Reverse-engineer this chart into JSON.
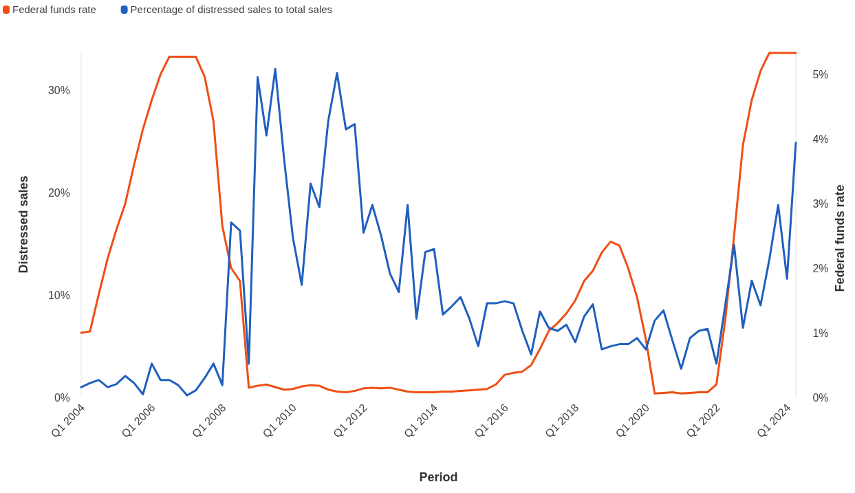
{
  "chart_data": {
    "type": "line",
    "xlabel": "Period",
    "ylabel": "Distressed sales",
    "y2label": "Federal funds rate",
    "categories": [
      "Q1 2004",
      null,
      null,
      null,
      null,
      null,
      null,
      null,
      "Q1 2006",
      null,
      null,
      null,
      null,
      null,
      null,
      null,
      "Q1 2008",
      null,
      null,
      null,
      null,
      null,
      null,
      null,
      "Q1 2010",
      null,
      null,
      null,
      null,
      null,
      null,
      null,
      "Q1 2012",
      null,
      null,
      null,
      null,
      null,
      null,
      null,
      "Q1 2014",
      null,
      null,
      null,
      null,
      null,
      null,
      null,
      "Q1 2016",
      null,
      null,
      null,
      null,
      null,
      null,
      null,
      "Q1 2018",
      null,
      null,
      null,
      null,
      null,
      null,
      null,
      "Q1 2020",
      null,
      null,
      null,
      null,
      null,
      null,
      null,
      "Q1 2022",
      null,
      null,
      null,
      null,
      null,
      null,
      null,
      "Q1 2024",
      null
    ],
    "series": [
      {
        "name": "Federal funds rate",
        "color": "#f04e14",
        "axis": "y2",
        "values": [
          1.0,
          1.02,
          1.6,
          2.15,
          2.6,
          3.0,
          3.6,
          4.15,
          4.6,
          5.0,
          5.27,
          5.27,
          5.27,
          5.27,
          4.96,
          4.27,
          2.65,
          2.0,
          1.8,
          0.15,
          0.18,
          0.2,
          0.16,
          0.12,
          0.13,
          0.17,
          0.19,
          0.18,
          0.12,
          0.09,
          0.08,
          0.1,
          0.14,
          0.15,
          0.14,
          0.15,
          0.12,
          0.09,
          0.08,
          0.08,
          0.08,
          0.09,
          0.09,
          0.1,
          0.11,
          0.12,
          0.13,
          0.2,
          0.35,
          0.38,
          0.4,
          0.5,
          0.75,
          1.03,
          1.15,
          1.3,
          1.5,
          1.8,
          1.96,
          2.24,
          2.41,
          2.35,
          2.0,
          1.55,
          0.9,
          0.06,
          0.07,
          0.08,
          0.06,
          0.07,
          0.08,
          0.08,
          0.2,
          1.2,
          2.5,
          3.9,
          4.6,
          5.05,
          5.33,
          5.33,
          5.33,
          5.33
        ]
      },
      {
        "name": "Percentage of distressed sales to total sales",
        "color": "#1f5fbf",
        "values": [
          1.0,
          1.4,
          1.7,
          1.0,
          1.3,
          2.1,
          1.4,
          0.3,
          3.3,
          1.7,
          1.7,
          1.2,
          0.2,
          0.7,
          1.9,
          3.3,
          1.2,
          17.1,
          16.3,
          3.3,
          31.3,
          25.6,
          32.1,
          23.3,
          15.6,
          11.0,
          20.9,
          18.6,
          27.0,
          31.7,
          26.2,
          26.7,
          16.1,
          18.8,
          15.8,
          12.1,
          10.3,
          18.8,
          7.7,
          14.2,
          14.5,
          8.1,
          8.9,
          9.8,
          7.7,
          5.0,
          9.2,
          9.2,
          9.4,
          9.2,
          6.5,
          4.2,
          8.4,
          6.8,
          6.5,
          7.1,
          5.4,
          7.9,
          9.1,
          4.7,
          5.0,
          5.2,
          5.2,
          5.8,
          4.7,
          7.5,
          8.5,
          5.6,
          2.8,
          5.8,
          6.5,
          6.7,
          3.3,
          9.0,
          14.9,
          6.8,
          11.4,
          9.0,
          13.5,
          18.8,
          11.6,
          24.9
        ]
      }
    ],
    "ylim": [
      0,
      33.8
    ],
    "yticks": [
      {
        "value": 0,
        "label": "0%"
      },
      {
        "value": 10,
        "label": "10%"
      },
      {
        "value": 20,
        "label": "20%"
      },
      {
        "value": 30,
        "label": "30%"
      }
    ],
    "y2lim": [
      0,
      5.35
    ],
    "y2ticks": [
      {
        "value": 0,
        "label": "0%"
      },
      {
        "value": 1,
        "label": "1%"
      },
      {
        "value": 2,
        "label": "2%"
      },
      {
        "value": 3,
        "label": "3%"
      },
      {
        "value": 4,
        "label": "4%"
      },
      {
        "value": 5,
        "label": "5%"
      }
    ],
    "legend": "top left",
    "line_style": "solid",
    "marker": "none"
  }
}
